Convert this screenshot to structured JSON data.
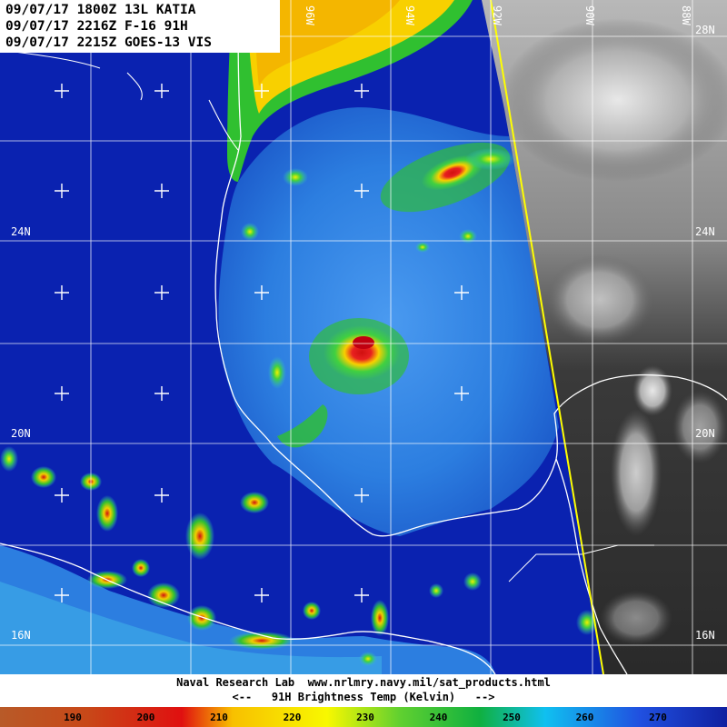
{
  "header": {
    "line1": "09/07/17 1800Z 13L KATIA",
    "line2": "09/07/17 2216Z F-16 91H",
    "line3": "09/07/17 2215Z GOES-13 VIS"
  },
  "map": {
    "latitude_labels": [
      "28N",
      "24N",
      "20N",
      "16N"
    ],
    "longitude_labels": [
      "96W",
      "94W",
      "92W",
      "90W",
      "88W"
    ],
    "colors": {
      "background_cold": "#0a1ea8",
      "ocean": "#2a80e0",
      "coast": "#ffffff",
      "swath_edge": "#ffff00",
      "grid": "#ffffff"
    }
  },
  "footer": {
    "credit": "Naval Research Lab  www.nrlmry.navy.mil/sat_products.html",
    "scale_title": "<--   91H Brightness Temp (Kelvin)   -->"
  },
  "colorbar": {
    "ticks": [
      "190",
      "200",
      "210",
      "220",
      "230",
      "240",
      "250",
      "260",
      "270"
    ],
    "colors": [
      "#c0501e",
      "#d04010",
      "#e81010",
      "#f8b800",
      "#f0f000",
      "#80e040",
      "#20c020",
      "#10a0f0",
      "#1e3ce0"
    ]
  }
}
